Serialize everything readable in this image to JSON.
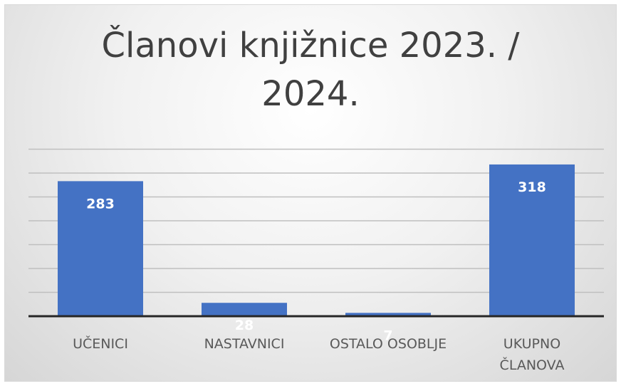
{
  "chart_data": {
    "type": "bar",
    "title_lines": [
      "Članovi knjižnice 2023. /",
      "2024."
    ],
    "categories": [
      [
        "UČENICI"
      ],
      [
        "NASTAVNICI"
      ],
      [
        "OSTALO OSOBLJE"
      ],
      [
        "UKUPNO",
        "ČLANOVA"
      ]
    ],
    "values": [
      283,
      28,
      7,
      318
    ],
    "data_labels": [
      "283",
      "28",
      "7",
      "318"
    ],
    "xlabel": "",
    "ylabel": "",
    "ylim": [
      0,
      350
    ],
    "grid": true,
    "bar_color": "#4472c4",
    "axis_color": "#262626",
    "gridline_color": "#bfbfbf"
  }
}
